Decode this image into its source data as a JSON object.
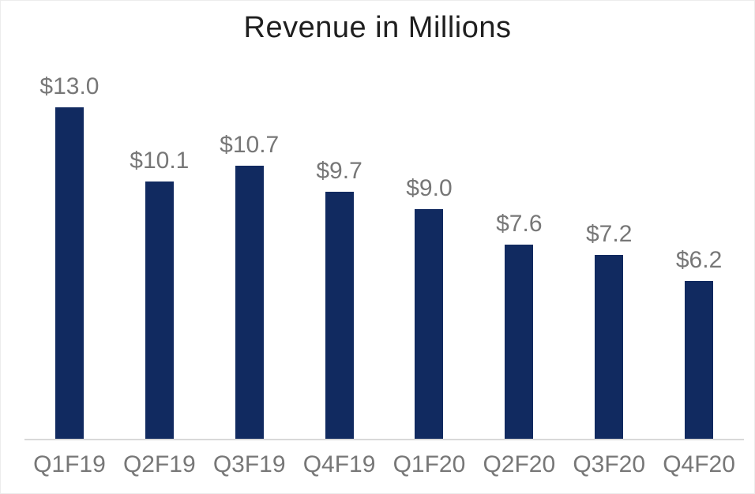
{
  "chart_data": {
    "type": "bar",
    "title": "Revenue in Millions",
    "categories": [
      "Q1F19",
      "Q2F19",
      "Q3F19",
      "Q4F19",
      "Q1F20",
      "Q2F20",
      "Q3F20",
      "Q4F20"
    ],
    "values": [
      13.0,
      10.1,
      10.7,
      9.7,
      9.0,
      7.6,
      7.2,
      6.2
    ],
    "value_labels": [
      "$13.0",
      "$10.1",
      "$10.7",
      "$9.7",
      "$9.0",
      "$7.6",
      "$7.2",
      "$6.2"
    ],
    "ylabel": "",
    "xlabel": "",
    "ylim": [
      0,
      13.0
    ],
    "grid": false,
    "legend": false,
    "bar_color": "#112A60",
    "label_color": "#777777",
    "axis_line_color": "#D9D9D9",
    "title_color": "#1F1F1F"
  }
}
